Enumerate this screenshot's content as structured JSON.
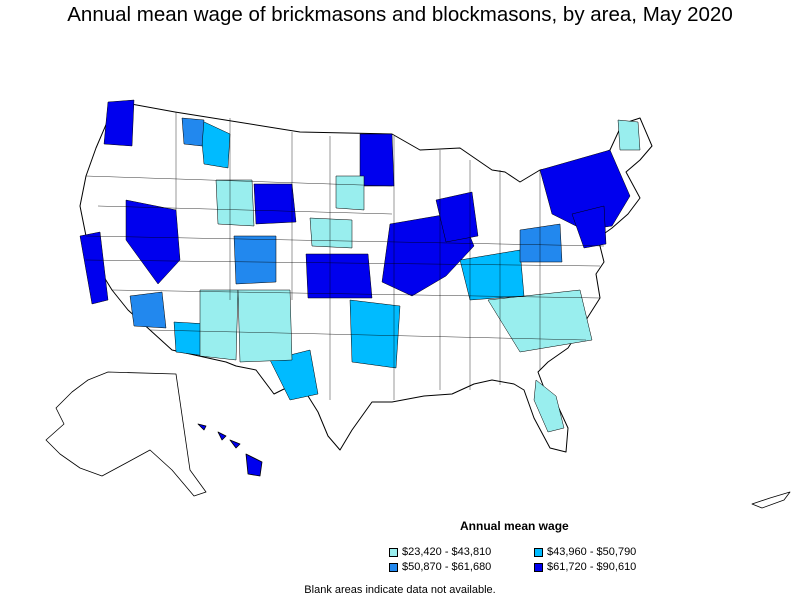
{
  "title": "Annual mean wage of brickmasons and blockmasons, by area, May 2020",
  "legend": {
    "title": "Annual mean wage",
    "items": [
      {
        "label": "$23,420 - $43,810",
        "color": "#99eeee"
      },
      {
        "label": "$43,960 - $50,790",
        "color": "#00bbff"
      },
      {
        "label": "$50,870 - $61,680",
        "color": "#2288ee"
      },
      {
        "label": "$61,720 - $90,610",
        "color": "#0000ee"
      }
    ]
  },
  "footnote": "Blank areas indicate data not available.",
  "colors": {
    "tier1": "#99eeee",
    "tier2": "#00bbff",
    "tier3": "#2288ee",
    "tier4": "#0000ee",
    "blank": "#ffffff",
    "border": "#000000"
  }
}
